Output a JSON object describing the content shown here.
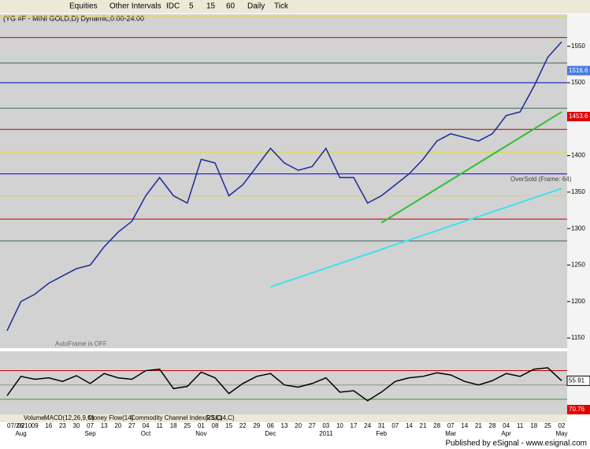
{
  "toolbar": [
    "Equities",
    "Other Intervals",
    "IDC",
    "5",
    "15",
    "60",
    "Daily",
    "Tick"
  ],
  "indicator_tabs": [
    "Volume",
    "MACD(12,26,9,C)",
    "Money Flow(14)",
    "Commodity Channel Index(23,C)",
    "RSI(14,C)"
  ],
  "footer": "Published by eSignal - www.esignal.com",
  "chart_data": [
    {
      "type": "line",
      "title": "(YG #F - MINI GOLD,D) Dynamic,0:00-24:00",
      "categories": [
        "07/26/10",
        "02",
        "09",
        "16",
        "23",
        "30",
        "07",
        "13",
        "20",
        "27",
        "04",
        "11",
        "18",
        "25",
        "01",
        "08",
        "15",
        "22",
        "29",
        "06",
        "13",
        "20",
        "27",
        "03",
        "10",
        "17",
        "24",
        "31",
        "07",
        "14",
        "21",
        "28",
        "07",
        "14",
        "21",
        "28",
        "04",
        "11",
        "18",
        "25",
        "02"
      ],
      "months": [
        null,
        "Aug",
        null,
        null,
        null,
        null,
        "Sep",
        null,
        null,
        null,
        "Oct",
        null,
        null,
        null,
        "Nov",
        null,
        null,
        null,
        null,
        "Dec",
        null,
        null,
        null,
        "2011",
        null,
        null,
        null,
        "Feb",
        null,
        null,
        null,
        null,
        "Mar",
        null,
        null,
        null,
        "Apr",
        null,
        null,
        null,
        "May"
      ],
      "series": [
        {
          "color": "#1a2a9a",
          "values": [
            1160,
            1200,
            1210,
            1225,
            1235,
            1245,
            1250,
            1275,
            1295,
            1310,
            1345,
            1370,
            1345,
            1335,
            1395,
            1390,
            1345,
            1360,
            1385,
            1410,
            1390,
            1380,
            1385,
            1410,
            1370,
            1370,
            1335,
            1345,
            1360,
            1375,
            1395,
            1420,
            1430,
            1425,
            1420,
            1430,
            1455,
            1460,
            1495,
            1535,
            1556
          ]
        }
      ],
      "levels": [
        {
          "value": 1590,
          "color": "#e8e000"
        },
        {
          "value": 1562,
          "color": "#c00000"
        },
        {
          "value": 1527,
          "color": "#406060"
        },
        {
          "value": 1500,
          "color": "#0000c0"
        },
        {
          "value": 1465,
          "color": "#407060"
        },
        {
          "value": 1436,
          "color": "#c00000"
        },
        {
          "value": 1405,
          "color": "#e8e000"
        },
        {
          "value": 1375,
          "color": "#0000e0"
        },
        {
          "value": 1345,
          "color": "#e8e000"
        },
        {
          "value": 1313,
          "color": "#c00000"
        },
        {
          "value": 1283,
          "color": "#406060"
        }
      ],
      "trendlines": [
        {
          "color": "#30c030",
          "x": [
            27,
            40
          ],
          "y": [
            1308,
            1460
          ]
        },
        {
          "color": "#40e0f0",
          "x": [
            19,
            40
          ],
          "y": [
            1220,
            1355
          ]
        }
      ],
      "price_flags": [
        {
          "value": 1516.6,
          "color": "#4a7ae0"
        },
        {
          "value": 1453.6,
          "color": "#e00000"
        }
      ],
      "annotations": [
        "OverSold (Frame: 64)",
        "AutoFrame is OFF"
      ],
      "ylim": [
        1136,
        1594
      ],
      "yticks": [
        1550,
        1500,
        1400,
        1350,
        1300,
        1250,
        1200,
        1150
      ]
    },
    {
      "type": "line",
      "title": "RSI(14,C)",
      "series": [
        {
          "color": "#000000",
          "values": [
            35,
            62,
            58,
            60,
            55,
            63,
            52,
            66,
            60,
            58,
            70,
            72,
            45,
            48,
            68,
            60,
            38,
            52,
            62,
            66,
            50,
            47,
            52,
            60,
            40,
            42,
            28,
            40,
            55,
            60,
            62,
            67,
            64,
            55,
            50,
            56,
            66,
            62,
            72,
            74,
            55.91
          ]
        }
      ],
      "levels": [
        {
          "value": 70,
          "color": "#c00000"
        },
        {
          "value": 50,
          "color": "#909090"
        },
        {
          "value": 30,
          "color": "#30a030"
        }
      ],
      "flags": [
        55.91,
        70.76
      ],
      "ylim": [
        9,
        97
      ]
    }
  ]
}
